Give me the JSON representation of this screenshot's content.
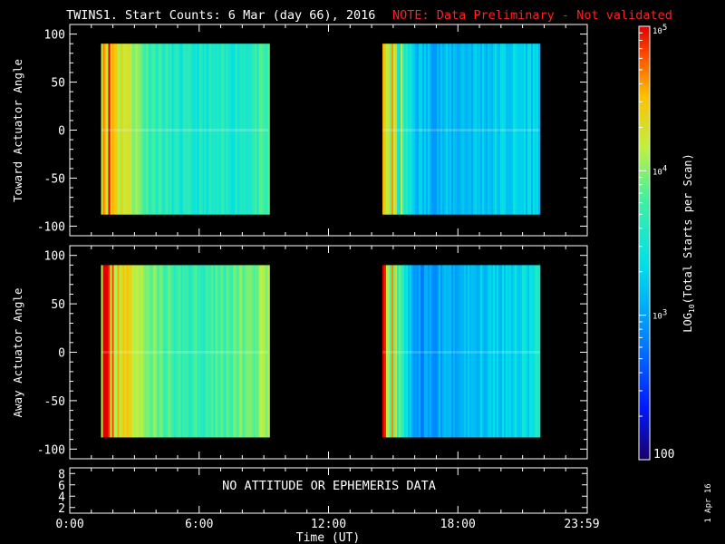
{
  "header": {
    "title": "TWINS1. Start Counts:  6 Mar (day  66), 2016",
    "note": "NOTE: Data Preliminary - Not validated"
  },
  "panels": {
    "top_ylabel": "Toward Actuator Angle",
    "bottom_ylabel": "Away Actuator Angle",
    "status_text": "NO ATTITUDE OR EPHEMERIS DATA",
    "xlabel": "Time (UT)",
    "date_stamp": "1 Apr 16"
  },
  "colorbar": {
    "label": "LOG10(Total Starts per Scan)",
    "ticks": [
      "10^5",
      "10^4",
      "10^3",
      "100"
    ]
  },
  "colors": {
    "note": "#ff2020",
    "background": "#000000",
    "axes": "#ffffff"
  },
  "chart_data": [
    {
      "type": "heatmap",
      "title": "TWINS1. Start Counts:  6 Mar (day  66), 2016",
      "ylabel": "Toward Actuator Angle",
      "xlabel": "Time (UT)",
      "xticks": [
        "0:00",
        "6:00",
        "12:00",
        "18:00",
        "23:59"
      ],
      "yticks": [
        100,
        50,
        0,
        -50,
        -100
      ],
      "ylim": [
        -110,
        110
      ],
      "xlim_hours": [
        0,
        24
      ],
      "color_scale": "log10",
      "clim": [
        100,
        100000
      ],
      "coverage_hours": [
        [
          1.45,
          9.2
        ],
        [
          14.5,
          21.8
        ]
      ],
      "angle_range": [
        -88,
        90
      ],
      "series": [
        {
          "x_hours": [
            1.5,
            2.5,
            3.5,
            5,
            7,
            9,
            14.6,
            15.5,
            16,
            17,
            18,
            19,
            20,
            21.5
          ],
          "log_counts": [
            4.75,
            4.3,
            3.8,
            3.5,
            3.5,
            3.7,
            4.4,
            3.6,
            3.2,
            3.1,
            3.15,
            3.2,
            3.25,
            3.3
          ]
        }
      ]
    },
    {
      "type": "heatmap",
      "ylabel": "Away Actuator Angle",
      "xlabel": "Time (UT)",
      "xticks": [
        "0:00",
        "6:00",
        "12:00",
        "18:00",
        "23:59"
      ],
      "yticks": [
        100,
        50,
        0,
        -50,
        -100
      ],
      "ylim": [
        -110,
        110
      ],
      "xlim_hours": [
        0,
        24
      ],
      "color_scale": "log10",
      "clim": [
        100,
        100000
      ],
      "coverage_hours": [
        [
          1.45,
          9.2
        ],
        [
          14.5,
          21.8
        ]
      ],
      "angle_range": [
        -88,
        90
      ],
      "series": [
        {
          "x_hours": [
            1.5,
            2.5,
            3.5,
            5,
            7,
            9,
            14.6,
            15.5,
            16,
            17,
            18,
            19,
            20,
            21.5
          ],
          "log_counts": [
            4.7,
            4.4,
            4.0,
            3.7,
            3.8,
            4.0,
            4.5,
            3.5,
            2.9,
            3.0,
            3.1,
            3.2,
            3.3,
            3.4
          ]
        }
      ]
    },
    {
      "type": "line",
      "xticks": [
        "0:00",
        "6:00",
        "12:00",
        "18:00",
        "23:59"
      ],
      "yticks": [
        8,
        6,
        4,
        2
      ],
      "ylim": [
        1,
        9
      ],
      "series": []
    }
  ]
}
